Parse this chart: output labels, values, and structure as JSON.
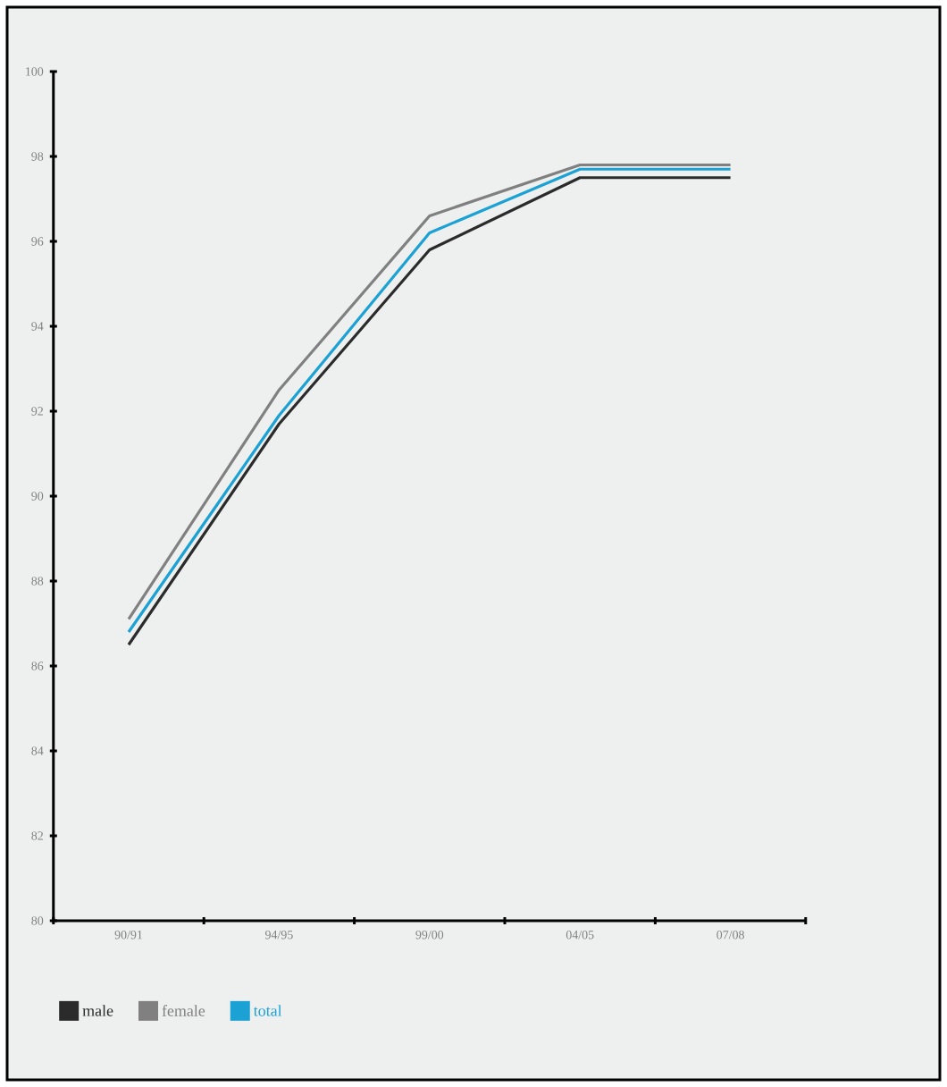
{
  "chart_data": {
    "type": "line",
    "categories": [
      "90/91",
      "94/95",
      "99/00",
      "04/05",
      "07/08"
    ],
    "series": [
      {
        "name": "male",
        "color": "#2b2b2b",
        "values": [
          86.5,
          91.7,
          95.8,
          97.5,
          97.5
        ]
      },
      {
        "name": "female",
        "color": "#808080",
        "values": [
          87.1,
          92.5,
          96.6,
          97.8,
          97.8
        ]
      },
      {
        "name": "total",
        "color": "#1ba1d4",
        "values": [
          86.8,
          91.9,
          96.2,
          97.7,
          97.7
        ]
      }
    ],
    "ylim": [
      80,
      100
    ],
    "yticks": [
      80,
      82,
      84,
      86,
      88,
      90,
      92,
      94,
      96,
      98,
      100
    ],
    "legend": "bottom",
    "marker": "none",
    "line_style": "solid",
    "grid": false
  }
}
